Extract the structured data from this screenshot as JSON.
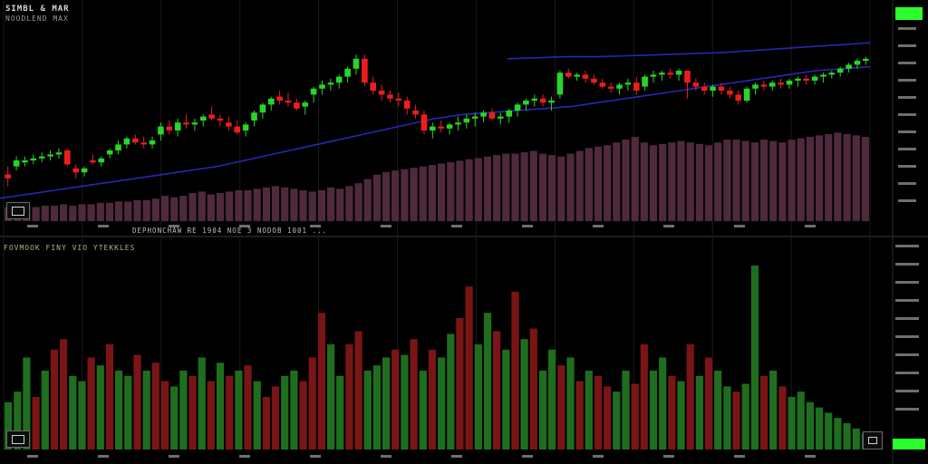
{
  "header": {
    "title": "SIMBL & MAR",
    "subtitle": "NOODLEND MAX",
    "lower_title": "FOVMOOK FINY VIO YTEKKLES",
    "volume_caption": "DEPHONCHAW RE 1904 NOE 3 NODOB 1001 ..."
  },
  "colors": {
    "background": "#000000",
    "up_candle": "#27d627",
    "down_candle": "#ee1d1d",
    "moving_average": "#2727b8",
    "volume_bar": "#4e2a3c",
    "osc_up": "#1e6e1e",
    "osc_down": "#7a1515",
    "grid": "#1a1a1a",
    "axis_text": "#bfbfbf",
    "last_value_tag": "#2cff2c"
  },
  "chart_data": [
    {
      "type": "candlestick",
      "title": "SIMBL & MAR",
      "ylim": [
        0,
        100
      ],
      "candles": [
        {
          "o": 18,
          "h": 22,
          "l": 12,
          "c": 16
        },
        {
          "o": 22,
          "h": 27,
          "l": 20,
          "c": 25
        },
        {
          "o": 24,
          "h": 27,
          "l": 22,
          "c": 25
        },
        {
          "o": 25,
          "h": 28,
          "l": 23,
          "c": 26
        },
        {
          "o": 26,
          "h": 29,
          "l": 24,
          "c": 27
        },
        {
          "o": 27,
          "h": 30,
          "l": 25,
          "c": 28
        },
        {
          "o": 28,
          "h": 31,
          "l": 26,
          "c": 29
        },
        {
          "o": 30,
          "h": 31,
          "l": 22,
          "c": 23
        },
        {
          "o": 21,
          "h": 23,
          "l": 16,
          "c": 19
        },
        {
          "o": 19,
          "h": 22,
          "l": 17,
          "c": 21
        },
        {
          "o": 25,
          "h": 28,
          "l": 23,
          "c": 24
        },
        {
          "o": 24,
          "h": 27,
          "l": 22,
          "c": 26
        },
        {
          "o": 28,
          "h": 31,
          "l": 26,
          "c": 30
        },
        {
          "o": 30,
          "h": 35,
          "l": 28,
          "c": 33
        },
        {
          "o": 33,
          "h": 37,
          "l": 31,
          "c": 36
        },
        {
          "o": 36,
          "h": 38,
          "l": 33,
          "c": 34
        },
        {
          "o": 34,
          "h": 37,
          "l": 31,
          "c": 33
        },
        {
          "o": 33,
          "h": 37,
          "l": 31,
          "c": 35
        },
        {
          "o": 38,
          "h": 44,
          "l": 35,
          "c": 42
        },
        {
          "o": 42,
          "h": 45,
          "l": 38,
          "c": 40
        },
        {
          "o": 40,
          "h": 46,
          "l": 37,
          "c": 44
        },
        {
          "o": 44,
          "h": 48,
          "l": 41,
          "c": 43
        },
        {
          "o": 43,
          "h": 46,
          "l": 40,
          "c": 44
        },
        {
          "o": 45,
          "h": 48,
          "l": 42,
          "c": 47
        },
        {
          "o": 48,
          "h": 52,
          "l": 45,
          "c": 46
        },
        {
          "o": 46,
          "h": 48,
          "l": 42,
          "c": 45
        },
        {
          "o": 44,
          "h": 47,
          "l": 40,
          "c": 42
        },
        {
          "o": 42,
          "h": 45,
          "l": 38,
          "c": 39
        },
        {
          "o": 40,
          "h": 44,
          "l": 37,
          "c": 43
        },
        {
          "o": 45,
          "h": 50,
          "l": 42,
          "c": 49
        },
        {
          "o": 49,
          "h": 54,
          "l": 46,
          "c": 53
        },
        {
          "o": 53,
          "h": 57,
          "l": 50,
          "c": 56
        },
        {
          "o": 57,
          "h": 60,
          "l": 53,
          "c": 55
        },
        {
          "o": 55,
          "h": 59,
          "l": 52,
          "c": 54
        },
        {
          "o": 54,
          "h": 56,
          "l": 50,
          "c": 51
        },
        {
          "o": 52,
          "h": 55,
          "l": 48,
          "c": 54
        },
        {
          "o": 58,
          "h": 62,
          "l": 54,
          "c": 61
        },
        {
          "o": 61,
          "h": 65,
          "l": 58,
          "c": 63
        },
        {
          "o": 63,
          "h": 66,
          "l": 60,
          "c": 64
        },
        {
          "o": 64,
          "h": 68,
          "l": 61,
          "c": 67
        },
        {
          "o": 67,
          "h": 72,
          "l": 64,
          "c": 71
        },
        {
          "o": 71,
          "h": 78,
          "l": 68,
          "c": 76
        },
        {
          "o": 76,
          "h": 78,
          "l": 62,
          "c": 64
        },
        {
          "o": 64,
          "h": 67,
          "l": 58,
          "c": 60
        },
        {
          "o": 60,
          "h": 63,
          "l": 55,
          "c": 58
        },
        {
          "o": 58,
          "h": 60,
          "l": 54,
          "c": 56
        },
        {
          "o": 56,
          "h": 59,
          "l": 52,
          "c": 55
        },
        {
          "o": 55,
          "h": 57,
          "l": 48,
          "c": 51
        },
        {
          "o": 50,
          "h": 53,
          "l": 46,
          "c": 48
        },
        {
          "o": 48,
          "h": 50,
          "l": 38,
          "c": 40
        },
        {
          "o": 40,
          "h": 44,
          "l": 36,
          "c": 42
        },
        {
          "o": 42,
          "h": 45,
          "l": 39,
          "c": 41
        },
        {
          "o": 41,
          "h": 44,
          "l": 38,
          "c": 43
        },
        {
          "o": 43,
          "h": 47,
          "l": 40,
          "c": 44
        },
        {
          "o": 44,
          "h": 48,
          "l": 41,
          "c": 46
        },
        {
          "o": 46,
          "h": 49,
          "l": 42,
          "c": 47
        },
        {
          "o": 47,
          "h": 50,
          "l": 44,
          "c": 49
        },
        {
          "o": 49,
          "h": 51,
          "l": 45,
          "c": 46
        },
        {
          "o": 46,
          "h": 49,
          "l": 43,
          "c": 47
        },
        {
          "o": 47,
          "h": 51,
          "l": 44,
          "c": 50
        },
        {
          "o": 50,
          "h": 54,
          "l": 47,
          "c": 53
        },
        {
          "o": 53,
          "h": 56,
          "l": 50,
          "c": 55
        },
        {
          "o": 55,
          "h": 58,
          "l": 52,
          "c": 56
        },
        {
          "o": 56,
          "h": 58,
          "l": 52,
          "c": 54
        },
        {
          "o": 54,
          "h": 57,
          "l": 50,
          "c": 55
        },
        {
          "o": 58,
          "h": 70,
          "l": 56,
          "c": 69
        },
        {
          "o": 69,
          "h": 71,
          "l": 66,
          "c": 67
        },
        {
          "o": 67,
          "h": 69,
          "l": 65,
          "c": 68
        },
        {
          "o": 68,
          "h": 70,
          "l": 64,
          "c": 66
        },
        {
          "o": 66,
          "h": 68,
          "l": 63,
          "c": 64
        },
        {
          "o": 64,
          "h": 66,
          "l": 61,
          "c": 62
        },
        {
          "o": 62,
          "h": 64,
          "l": 59,
          "c": 61
        },
        {
          "o": 61,
          "h": 64,
          "l": 58,
          "c": 63
        },
        {
          "o": 63,
          "h": 66,
          "l": 60,
          "c": 64
        },
        {
          "o": 64,
          "h": 67,
          "l": 58,
          "c": 60
        },
        {
          "o": 62,
          "h": 68,
          "l": 60,
          "c": 67
        },
        {
          "o": 67,
          "h": 70,
          "l": 64,
          "c": 68
        },
        {
          "o": 68,
          "h": 70,
          "l": 65,
          "c": 69
        },
        {
          "o": 69,
          "h": 71,
          "l": 66,
          "c": 68
        },
        {
          "o": 68,
          "h": 71,
          "l": 65,
          "c": 70
        },
        {
          "o": 70,
          "h": 70,
          "l": 56,
          "c": 64
        },
        {
          "o": 64,
          "h": 66,
          "l": 60,
          "c": 62
        },
        {
          "o": 62,
          "h": 64,
          "l": 58,
          "c": 60
        },
        {
          "o": 60,
          "h": 63,
          "l": 57,
          "c": 62
        },
        {
          "o": 62,
          "h": 64,
          "l": 58,
          "c": 60
        },
        {
          "o": 60,
          "h": 62,
          "l": 56,
          "c": 58
        },
        {
          "o": 58,
          "h": 60,
          "l": 53,
          "c": 55
        },
        {
          "o": 55,
          "h": 62,
          "l": 54,
          "c": 61
        },
        {
          "o": 61,
          "h": 64,
          "l": 58,
          "c": 63
        },
        {
          "o": 63,
          "h": 65,
          "l": 60,
          "c": 62
        },
        {
          "o": 62,
          "h": 65,
          "l": 60,
          "c": 64
        },
        {
          "o": 64,
          "h": 66,
          "l": 61,
          "c": 63
        },
        {
          "o": 63,
          "h": 66,
          "l": 61,
          "c": 65
        },
        {
          "o": 65,
          "h": 67,
          "l": 62,
          "c": 66
        },
        {
          "o": 66,
          "h": 68,
          "l": 63,
          "c": 65
        },
        {
          "o": 65,
          "h": 68,
          "l": 63,
          "c": 67
        },
        {
          "o": 67,
          "h": 69,
          "l": 64,
          "c": 68
        },
        {
          "o": 68,
          "h": 70,
          "l": 66,
          "c": 69
        },
        {
          "o": 69,
          "h": 72,
          "l": 67,
          "c": 71
        },
        {
          "o": 71,
          "h": 74,
          "l": 69,
          "c": 73
        },
        {
          "o": 73,
          "h": 76,
          "l": 71,
          "c": 75
        },
        {
          "o": 75,
          "h": 77,
          "l": 73,
          "c": 76
        }
      ],
      "moving_average": [
        6,
        8,
        10,
        12,
        14,
        16,
        18,
        20,
        22,
        25,
        28,
        31,
        34,
        37,
        40,
        43,
        46,
        48,
        49,
        50,
        51,
        52,
        54,
        56,
        58,
        60,
        62,
        64,
        66,
        68,
        70,
        71,
        72
      ],
      "upper_band": [
        76,
        76.5,
        77,
        77,
        77.5,
        78,
        78.5,
        79,
        80,
        81,
        82,
        83,
        84
      ],
      "volume": [
        10,
        10,
        11,
        10,
        11,
        11,
        12,
        11,
        12,
        12,
        13,
        13,
        14,
        14,
        15,
        15,
        16,
        18,
        17,
        18,
        20,
        21,
        19,
        20,
        21,
        22,
        22,
        23,
        24,
        25,
        24,
        23,
        22,
        21,
        22,
        24,
        23,
        25,
        27,
        30,
        33,
        35,
        36,
        37,
        38,
        39,
        40,
        41,
        42,
        43,
        44,
        45,
        46,
        47,
        48,
        48,
        49,
        50,
        48,
        47,
        46,
        48,
        50,
        52,
        53,
        54,
        56,
        58,
        60,
        56,
        54,
        55,
        56,
        57,
        56,
        55,
        54,
        56,
        58,
        58,
        57,
        56,
        58,
        57,
        56,
        58,
        59,
        60,
        61,
        62,
        63,
        62,
        61,
        60
      ]
    },
    {
      "type": "bar",
      "title": "FOVMOOK FINY VIO YTEKKLES",
      "ylim": [
        0,
        100
      ],
      "values": [
        18,
        22,
        35,
        20,
        30,
        38,
        42,
        28,
        26,
        35,
        32,
        40,
        30,
        28,
        36,
        30,
        33,
        26,
        24,
        30,
        28,
        35,
        26,
        33,
        28,
        30,
        32,
        26,
        20,
        24,
        28,
        30,
        26,
        35,
        52,
        40,
        28,
        40,
        45,
        30,
        32,
        35,
        38,
        36,
        42,
        30,
        38,
        35,
        44,
        50,
        62,
        40,
        52,
        45,
        38,
        60,
        42,
        46,
        30,
        38,
        32,
        35,
        26,
        30,
        28,
        24,
        22,
        30,
        25,
        40,
        30,
        35,
        28,
        26,
        40,
        28,
        35,
        30,
        24,
        22,
        25,
        70,
        28,
        30,
        24,
        20,
        22,
        18,
        16,
        14,
        12,
        10,
        8,
        6
      ],
      "direction": [
        1,
        1,
        1,
        0,
        1,
        0,
        0,
        1,
        1,
        0,
        1,
        0,
        1,
        1,
        0,
        1,
        0,
        0,
        1,
        1,
        0,
        1,
        0,
        1,
        0,
        1,
        0,
        1,
        0,
        0,
        1,
        1,
        0,
        0,
        0,
        1,
        1,
        0,
        0,
        1,
        1,
        1,
        0,
        1,
        0,
        1,
        0,
        1,
        1,
        0,
        0,
        1,
        1,
        0,
        1,
        0,
        1,
        0,
        1,
        1,
        0,
        1,
        0,
        1,
        0,
        0,
        1,
        1,
        0,
        0,
        1,
        1,
        0,
        1,
        0,
        1,
        0,
        1,
        1,
        0,
        1,
        1,
        0,
        1,
        0,
        1,
        1,
        1,
        1,
        1,
        1,
        1,
        1,
        1
      ]
    }
  ]
}
